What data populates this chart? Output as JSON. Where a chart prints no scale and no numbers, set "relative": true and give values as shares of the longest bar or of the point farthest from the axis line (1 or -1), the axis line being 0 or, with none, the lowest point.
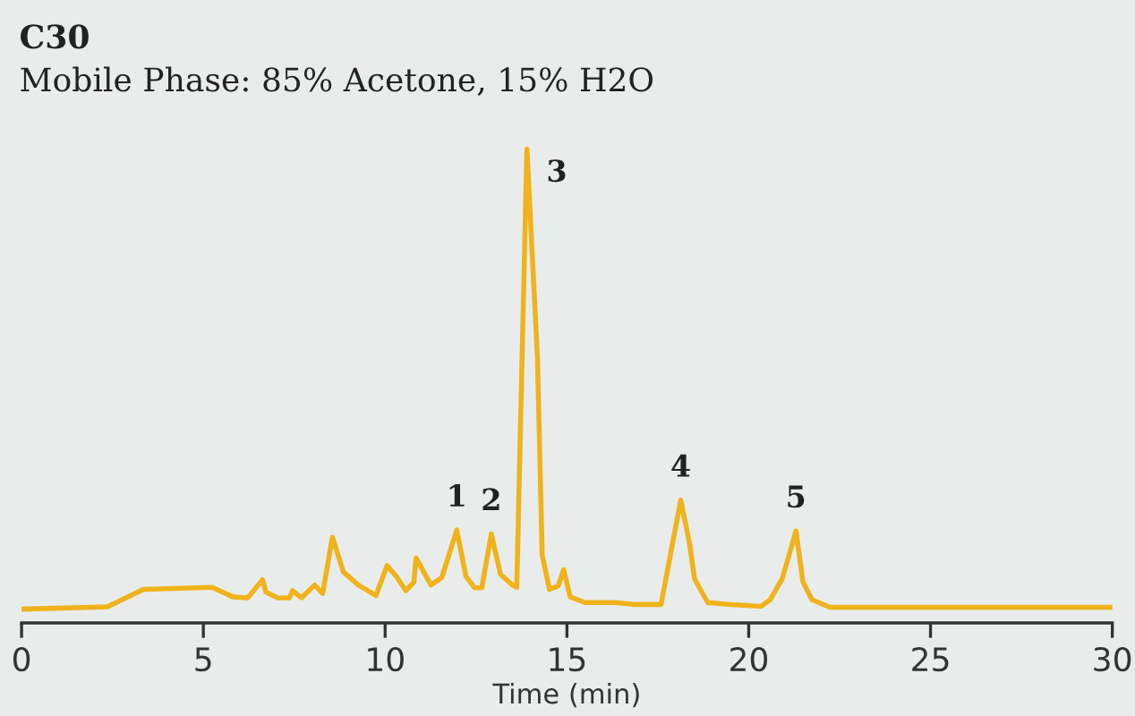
{
  "chart_data": {
    "type": "line",
    "title": "C30",
    "subtitle": "Mobile Phase: 85% Acetone, 15% H2O",
    "xlabel": "Time (min)",
    "relative": true,
    "xlim": [
      0,
      30
    ],
    "xticks": [
      0,
      5,
      10,
      15,
      20,
      25,
      30
    ],
    "tick_labels": "x",
    "grid": false,
    "legend": false,
    "marker": "none",
    "line_style": "solid",
    "series": [
      {
        "color": "#f0b31c",
        "x": [
          0,
          2.36,
          3.35,
          5.24,
          5.81,
          6.22,
          6.63,
          6.72,
          7.04,
          7.37,
          7.45,
          7.7,
          8.06,
          8.28,
          8.55,
          8.85,
          9.26,
          9.75,
          10.05,
          10.3,
          10.57,
          10.79,
          10.85,
          11.26,
          11.56,
          11.97,
          12.22,
          12.46,
          12.66,
          12.92,
          13.17,
          13.5,
          13.62,
          13.9,
          14.19,
          14.32,
          14.52,
          14.76,
          14.91,
          15.09,
          15.5,
          16.32,
          16.81,
          17.59,
          18.13,
          18.37,
          18.51,
          18.87,
          19.44,
          20.34,
          20.59,
          20.92,
          21.3,
          21.49,
          21.74,
          22.23,
          30
        ],
        "values": [
          0.029,
          0.034,
          0.071,
          0.075,
          0.055,
          0.053,
          0.091,
          0.065,
          0.053,
          0.053,
          0.068,
          0.053,
          0.08,
          0.062,
          0.181,
          0.108,
          0.08,
          0.058,
          0.121,
          0.099,
          0.068,
          0.086,
          0.137,
          0.08,
          0.096,
          0.196,
          0.099,
          0.074,
          0.074,
          0.188,
          0.103,
          0.08,
          0.075,
          1.0,
          0.558,
          0.143,
          0.071,
          0.078,
          0.112,
          0.055,
          0.043,
          0.043,
          0.039,
          0.039,
          0.259,
          0.169,
          0.093,
          0.043,
          0.039,
          0.035,
          0.049,
          0.093,
          0.194,
          0.087,
          0.049,
          0.033,
          0.033
        ]
      }
    ],
    "annotations": [
      {
        "text": "1",
        "x": 11.97,
        "y": 0.196
      },
      {
        "text": "2",
        "x": 12.92,
        "y": 0.188
      },
      {
        "text": "3",
        "x": 13.9,
        "y": 1.0
      },
      {
        "text": "4",
        "x": 18.13,
        "y": 0.259
      },
      {
        "text": "5",
        "x": 21.3,
        "y": 0.194
      }
    ]
  }
}
